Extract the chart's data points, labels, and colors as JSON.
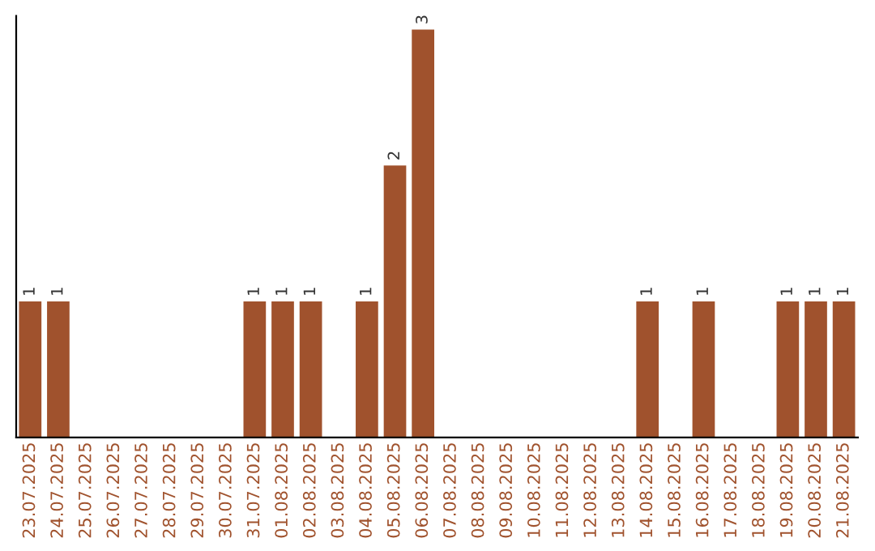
{
  "chart_data": {
    "type": "bar",
    "categories": [
      "23.07.2025",
      "24.07.2025",
      "25.07.2025",
      "26.07.2025",
      "27.07.2025",
      "28.07.2025",
      "29.07.2025",
      "30.07.2025",
      "31.07.2025",
      "01.08.2025",
      "02.08.2025",
      "03.08.2025",
      "04.08.2025",
      "05.08.2025",
      "06.08.2025",
      "07.08.2025",
      "08.08.2025",
      "09.08.2025",
      "10.08.2025",
      "11.08.2025",
      "12.08.2025",
      "13.08.2025",
      "14.08.2025",
      "15.08.2025",
      "16.08.2025",
      "17.08.2025",
      "18.08.2025",
      "19.08.2025",
      "20.08.2025",
      "21.08.2025"
    ],
    "values": [
      1,
      1,
      0,
      0,
      0,
      0,
      0,
      0,
      1,
      1,
      1,
      0,
      1,
      2,
      3,
      0,
      0,
      0,
      0,
      0,
      0,
      0,
      1,
      0,
      1,
      0,
      0,
      1,
      1,
      1
    ],
    "value_labels": [
      "1",
      "1",
      null,
      null,
      null,
      null,
      null,
      null,
      "1",
      "1",
      "1",
      null,
      "1",
      "2",
      "3",
      null,
      null,
      null,
      null,
      null,
      null,
      null,
      "1",
      null,
      "1",
      null,
      null,
      "1",
      "1",
      "1"
    ],
    "color": "#a0522d",
    "ylim": [
      0,
      3.1
    ],
    "tick_labels": "x",
    "grid": false
  }
}
